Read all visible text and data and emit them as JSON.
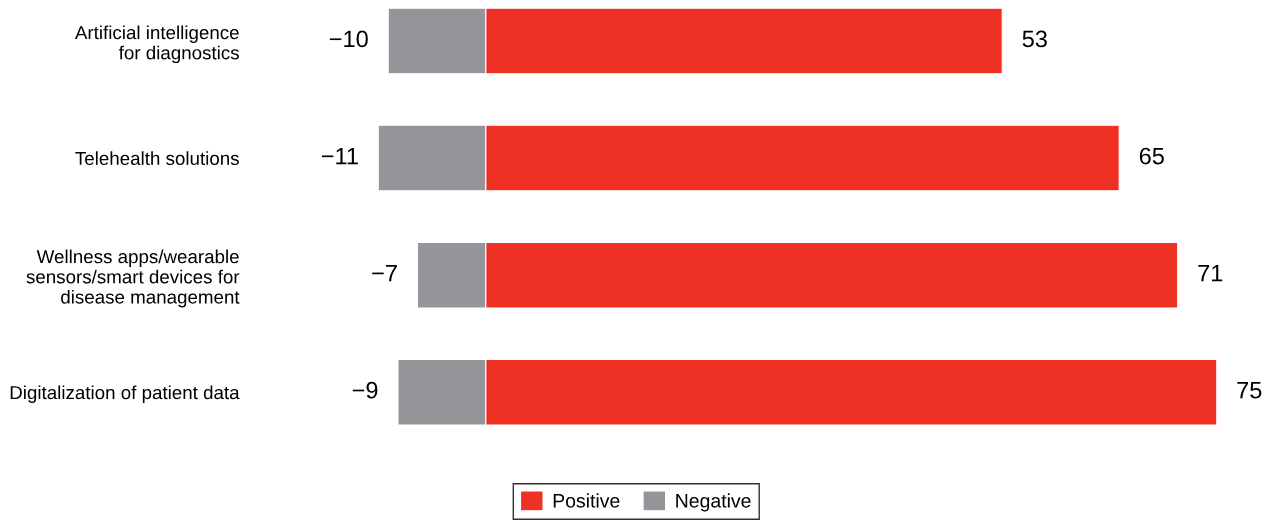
{
  "chart_data": {
    "type": "bar",
    "orientation": "horizontal",
    "categories": [
      "Artificial intelligence\nfor diagnostics",
      "Telehealth solutions",
      "Wellness apps/wearable\nsensors/smart devices for\ndisease management",
      "Digitalization of patient data"
    ],
    "series": [
      {
        "name": "Positive",
        "color": "#ee3124",
        "values": [
          53,
          65,
          71,
          75
        ]
      },
      {
        "name": "Negative",
        "color": "#939598",
        "values": [
          -10,
          -11,
          -7,
          -9
        ]
      }
    ],
    "stacked": true,
    "data_labels": true,
    "tick_labels": "y",
    "legend": "bottom",
    "grid": false
  }
}
